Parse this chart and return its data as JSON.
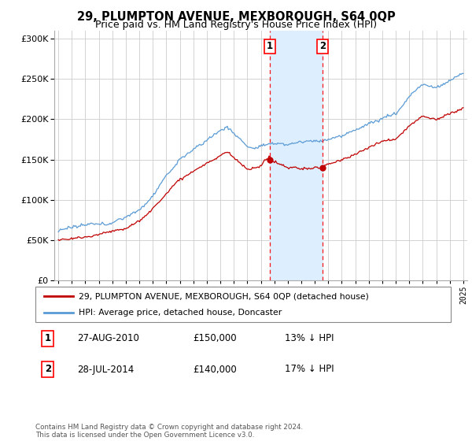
{
  "title": "29, PLUMPTON AVENUE, MEXBOROUGH, S64 0QP",
  "subtitle": "Price paid vs. HM Land Registry's House Price Index (HPI)",
  "legend_line1": "29, PLUMPTON AVENUE, MEXBOROUGH, S64 0QP (detached house)",
  "legend_line2": "HPI: Average price, detached house, Doncaster",
  "annotation1_date": "27-AUG-2010",
  "annotation1_price": "£150,000",
  "annotation1_hpi": "13% ↓ HPI",
  "annotation1_year": 2010.65,
  "annotation1_value": 150000,
  "annotation2_date": "28-JUL-2014",
  "annotation2_price": "£140,000",
  "annotation2_hpi": "17% ↓ HPI",
  "annotation2_year": 2014.57,
  "annotation2_value": 140000,
  "hpi_color": "#5b9bd5",
  "price_color": "#c00000",
  "highlight_color": "#ddeeff",
  "footnote": "Contains HM Land Registry data © Crown copyright and database right 2024.\nThis data is licensed under the Open Government Licence v3.0.",
  "ylim": [
    0,
    310000
  ],
  "yticks": [
    0,
    50000,
    100000,
    150000,
    200000,
    250000,
    300000
  ],
  "xmin": 1994.7,
  "xmax": 2025.3
}
